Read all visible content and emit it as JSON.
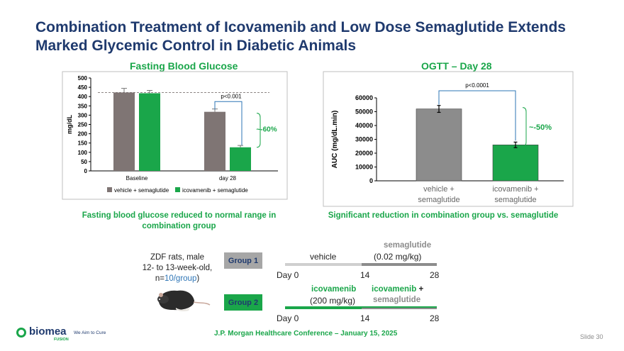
{
  "slide_title": "Combination Treatment of Icovamenib and Low Dose Semaglutide Extends Marked Glycemic Control in Diabetic Animals",
  "colors": {
    "grey_bar": "#7f7574",
    "green_bar": "#1aa64a",
    "oggt_grey": "#8c8c8c",
    "title_blue": "#1f3a6e",
    "accent_green": "#1aa64a"
  },
  "chart_data": [
    {
      "type": "bar",
      "title": "Fasting Blood Glucose",
      "ylabel": "mg/dL",
      "categories": [
        "Baseline",
        "day 28"
      ],
      "series": [
        {
          "name": "vehicle + semaglutide",
          "values": [
            422,
            318
          ],
          "errors": [
            22,
            15
          ]
        },
        {
          "name": "icovamenib + semaglutide",
          "values": [
            418,
            127
          ],
          "errors": [
            15,
            10
          ]
        }
      ],
      "ylim": [
        0,
        500
      ],
      "yticks": [
        "0",
        "50",
        "100",
        "150",
        "200",
        "250",
        "300",
        "350",
        "400",
        "450",
        "500"
      ],
      "reference_line": 422,
      "annotations": {
        "pvalue": "p<0.001",
        "reduction": "~-60%"
      },
      "legend_placement": "bottom",
      "caption": "Fasting blood glucose reduced to normal range in combination group"
    },
    {
      "type": "bar",
      "title": "OGTT – Day 28",
      "ylabel": "AUC (mg/dL.min)",
      "categories": [
        "vehicle + semaglutide",
        "icovamenib + semaglutide"
      ],
      "category_lines": [
        [
          "vehicle +",
          "semaglutide"
        ],
        [
          "icovamenib +",
          "semaglutide"
        ]
      ],
      "values": [
        52000,
        26000
      ],
      "errors": [
        2500,
        2000
      ],
      "ylim": [
        0,
        60000
      ],
      "yticks": [
        "0",
        "10000",
        "20000",
        "30000",
        "40000",
        "50000",
        "60000"
      ],
      "annotations": {
        "pvalue": "p<0.0001",
        "reduction": "~-50%"
      },
      "caption": "Significant reduction in combination group vs. semaglutide"
    }
  ],
  "study": {
    "animals_line1": "ZDF rats, male",
    "animals_line2": "12- to 13-week-old,",
    "n_prefix": "n=",
    "n_value": "10/group",
    "n_suffix": ")",
    "rat_icon": "rat-photo",
    "group1": {
      "label": "Group 1",
      "phase1": "vehicle",
      "phase2_line1": "semaglutide",
      "phase2_line2": "(0.02 mg/kg)",
      "ticks": [
        "Day 0",
        "14",
        "28"
      ]
    },
    "group2": {
      "label": "Group 2",
      "phase1_line1": "icovamenib",
      "phase1_line2": "(200 mg/kg)",
      "phase2_green": "icovamenib",
      "phase2_plus": " +",
      "phase2_line2": "semaglutide",
      "ticks": [
        "Day 0",
        "14",
        "28"
      ]
    }
  },
  "footer": {
    "logo_text": "biomea",
    "logo_sub": "FUSION",
    "tagline": "We Aim to Cure",
    "conference": "J.P. Morgan Healthcare Conference – January 15, 2025",
    "slide_number": "Slide 30"
  }
}
